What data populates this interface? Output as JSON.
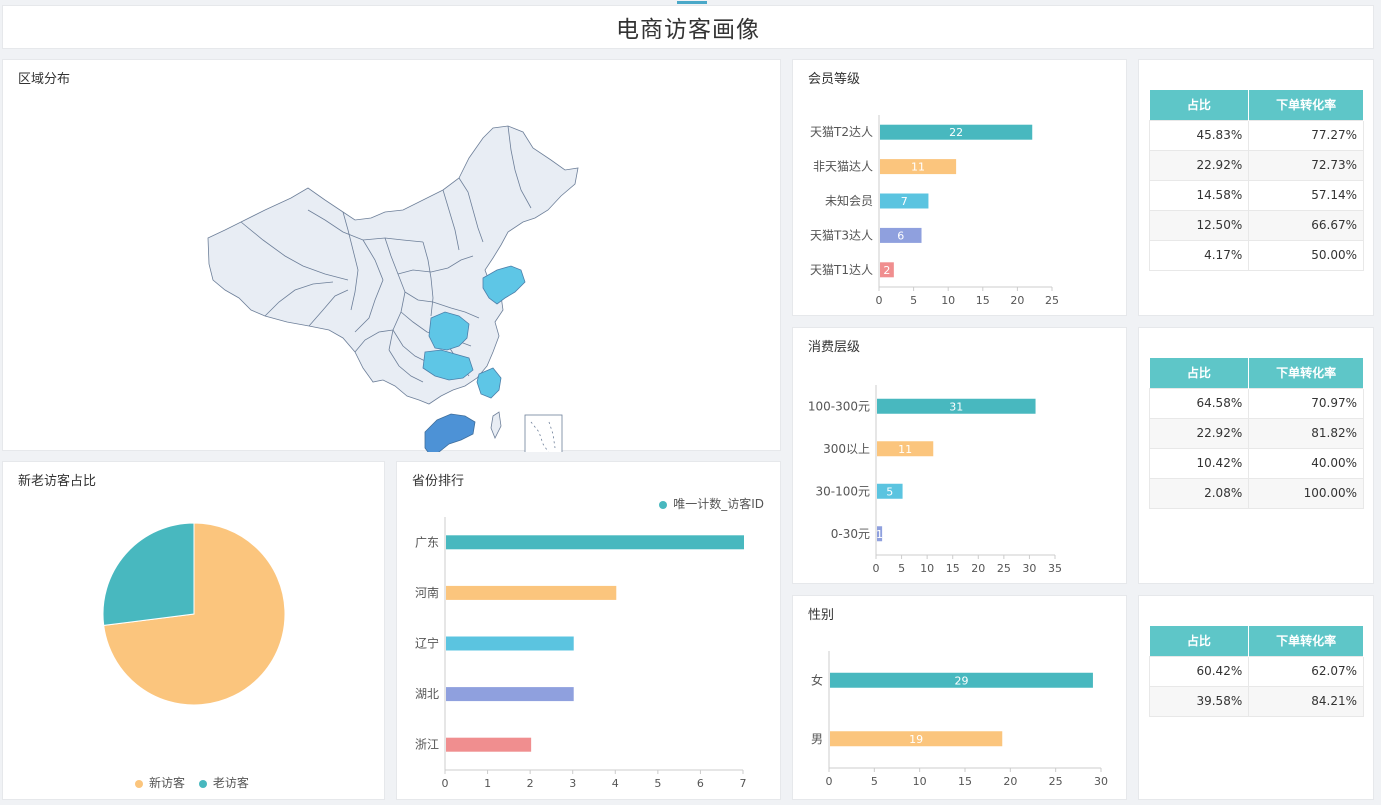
{
  "page_title": "电商访客画像",
  "colors": {
    "teal": "#48b8bf",
    "orange": "#fbc57d",
    "sky": "#5bc4e0",
    "purple": "#8fa0de",
    "pink": "#f08e8f",
    "map_base": "#e8edf4",
    "map_light": "#5ec6e6",
    "map_dark": "#4d92d6"
  },
  "region": {
    "title": "区域分布",
    "highlighted": [
      "广东",
      "河南",
      "辽宁",
      "湖北",
      "浙江"
    ]
  },
  "member": {
    "title": "会员等级",
    "table": {
      "headers": [
        "占比",
        "下单转化率"
      ],
      "rows": [
        [
          "45.83%",
          "77.27%"
        ],
        [
          "22.92%",
          "72.73%"
        ],
        [
          "14.58%",
          "57.14%"
        ],
        [
          "12.50%",
          "66.67%"
        ],
        [
          "4.17%",
          "50.00%"
        ]
      ]
    }
  },
  "spend": {
    "title": "消费层级",
    "table": {
      "headers": [
        "占比",
        "下单转化率"
      ],
      "rows": [
        [
          "64.58%",
          "70.97%"
        ],
        [
          "22.92%",
          "81.82%"
        ],
        [
          "10.42%",
          "40.00%"
        ],
        [
          "2.08%",
          "100.00%"
        ]
      ]
    }
  },
  "gender": {
    "title": "性别",
    "table": {
      "headers": [
        "占比",
        "下单转化率"
      ],
      "rows": [
        [
          "60.42%",
          "62.07%"
        ],
        [
          "39.58%",
          "84.21%"
        ]
      ]
    }
  },
  "visitors": {
    "title": "新老访客占比",
    "legend": [
      "新访客",
      "老访客"
    ]
  },
  "province": {
    "title": "省份排行",
    "legend": "唯一计数_访客ID"
  },
  "chart_data": [
    {
      "id": "member",
      "type": "bar",
      "orientation": "horizontal",
      "title": "会员等级",
      "categories": [
        "天猫T2达人",
        "非天猫达人",
        "未知会员",
        "天猫T3达人",
        "天猫T1达人"
      ],
      "values": [
        22,
        11,
        7,
        6,
        2
      ],
      "colors": [
        "#48b8bf",
        "#fbc57d",
        "#5bc4e0",
        "#8fa0de",
        "#f08e8f"
      ],
      "xlim": [
        0,
        25
      ],
      "ticks": [
        0,
        5,
        10,
        15,
        20,
        25
      ],
      "data_labels": true
    },
    {
      "id": "spend",
      "type": "bar",
      "orientation": "horizontal",
      "title": "消费层级",
      "categories": [
        "100-300元",
        "300以上",
        "30-100元",
        "0-30元"
      ],
      "values": [
        31,
        11,
        5,
        1
      ],
      "colors": [
        "#48b8bf",
        "#fbc57d",
        "#5bc4e0",
        "#8fa0de"
      ],
      "xlim": [
        0,
        35
      ],
      "ticks": [
        0,
        5,
        10,
        15,
        20,
        25,
        30,
        35
      ],
      "data_labels": true
    },
    {
      "id": "gender",
      "type": "bar",
      "orientation": "horizontal",
      "title": "性别",
      "categories": [
        "女",
        "男"
      ],
      "values": [
        29,
        19
      ],
      "colors": [
        "#48b8bf",
        "#fbc57d"
      ],
      "xlim": [
        0,
        30
      ],
      "ticks": [
        0,
        5,
        10,
        15,
        20,
        25,
        30
      ],
      "data_labels": true
    },
    {
      "id": "visitors",
      "type": "pie",
      "title": "新老访客占比",
      "categories": [
        "新访客",
        "老访客"
      ],
      "values": [
        73,
        27
      ],
      "colors": [
        "#fbc57d",
        "#48b8bf"
      ],
      "legend": "bottom"
    },
    {
      "id": "province",
      "type": "bar",
      "orientation": "horizontal",
      "title": "省份排行",
      "categories": [
        "广东",
        "河南",
        "辽宁",
        "湖北",
        "浙江"
      ],
      "values": [
        7,
        4,
        3,
        3,
        2
      ],
      "colors": [
        "#48b8bf",
        "#fbc57d",
        "#5bc4e0",
        "#8fa0de",
        "#f08e8f"
      ],
      "xlim": [
        0,
        7
      ],
      "ticks": [
        0,
        1,
        2,
        3,
        4,
        5,
        6,
        7
      ],
      "legend": "top-right",
      "series_name": "唯一计数_访客ID"
    }
  ]
}
